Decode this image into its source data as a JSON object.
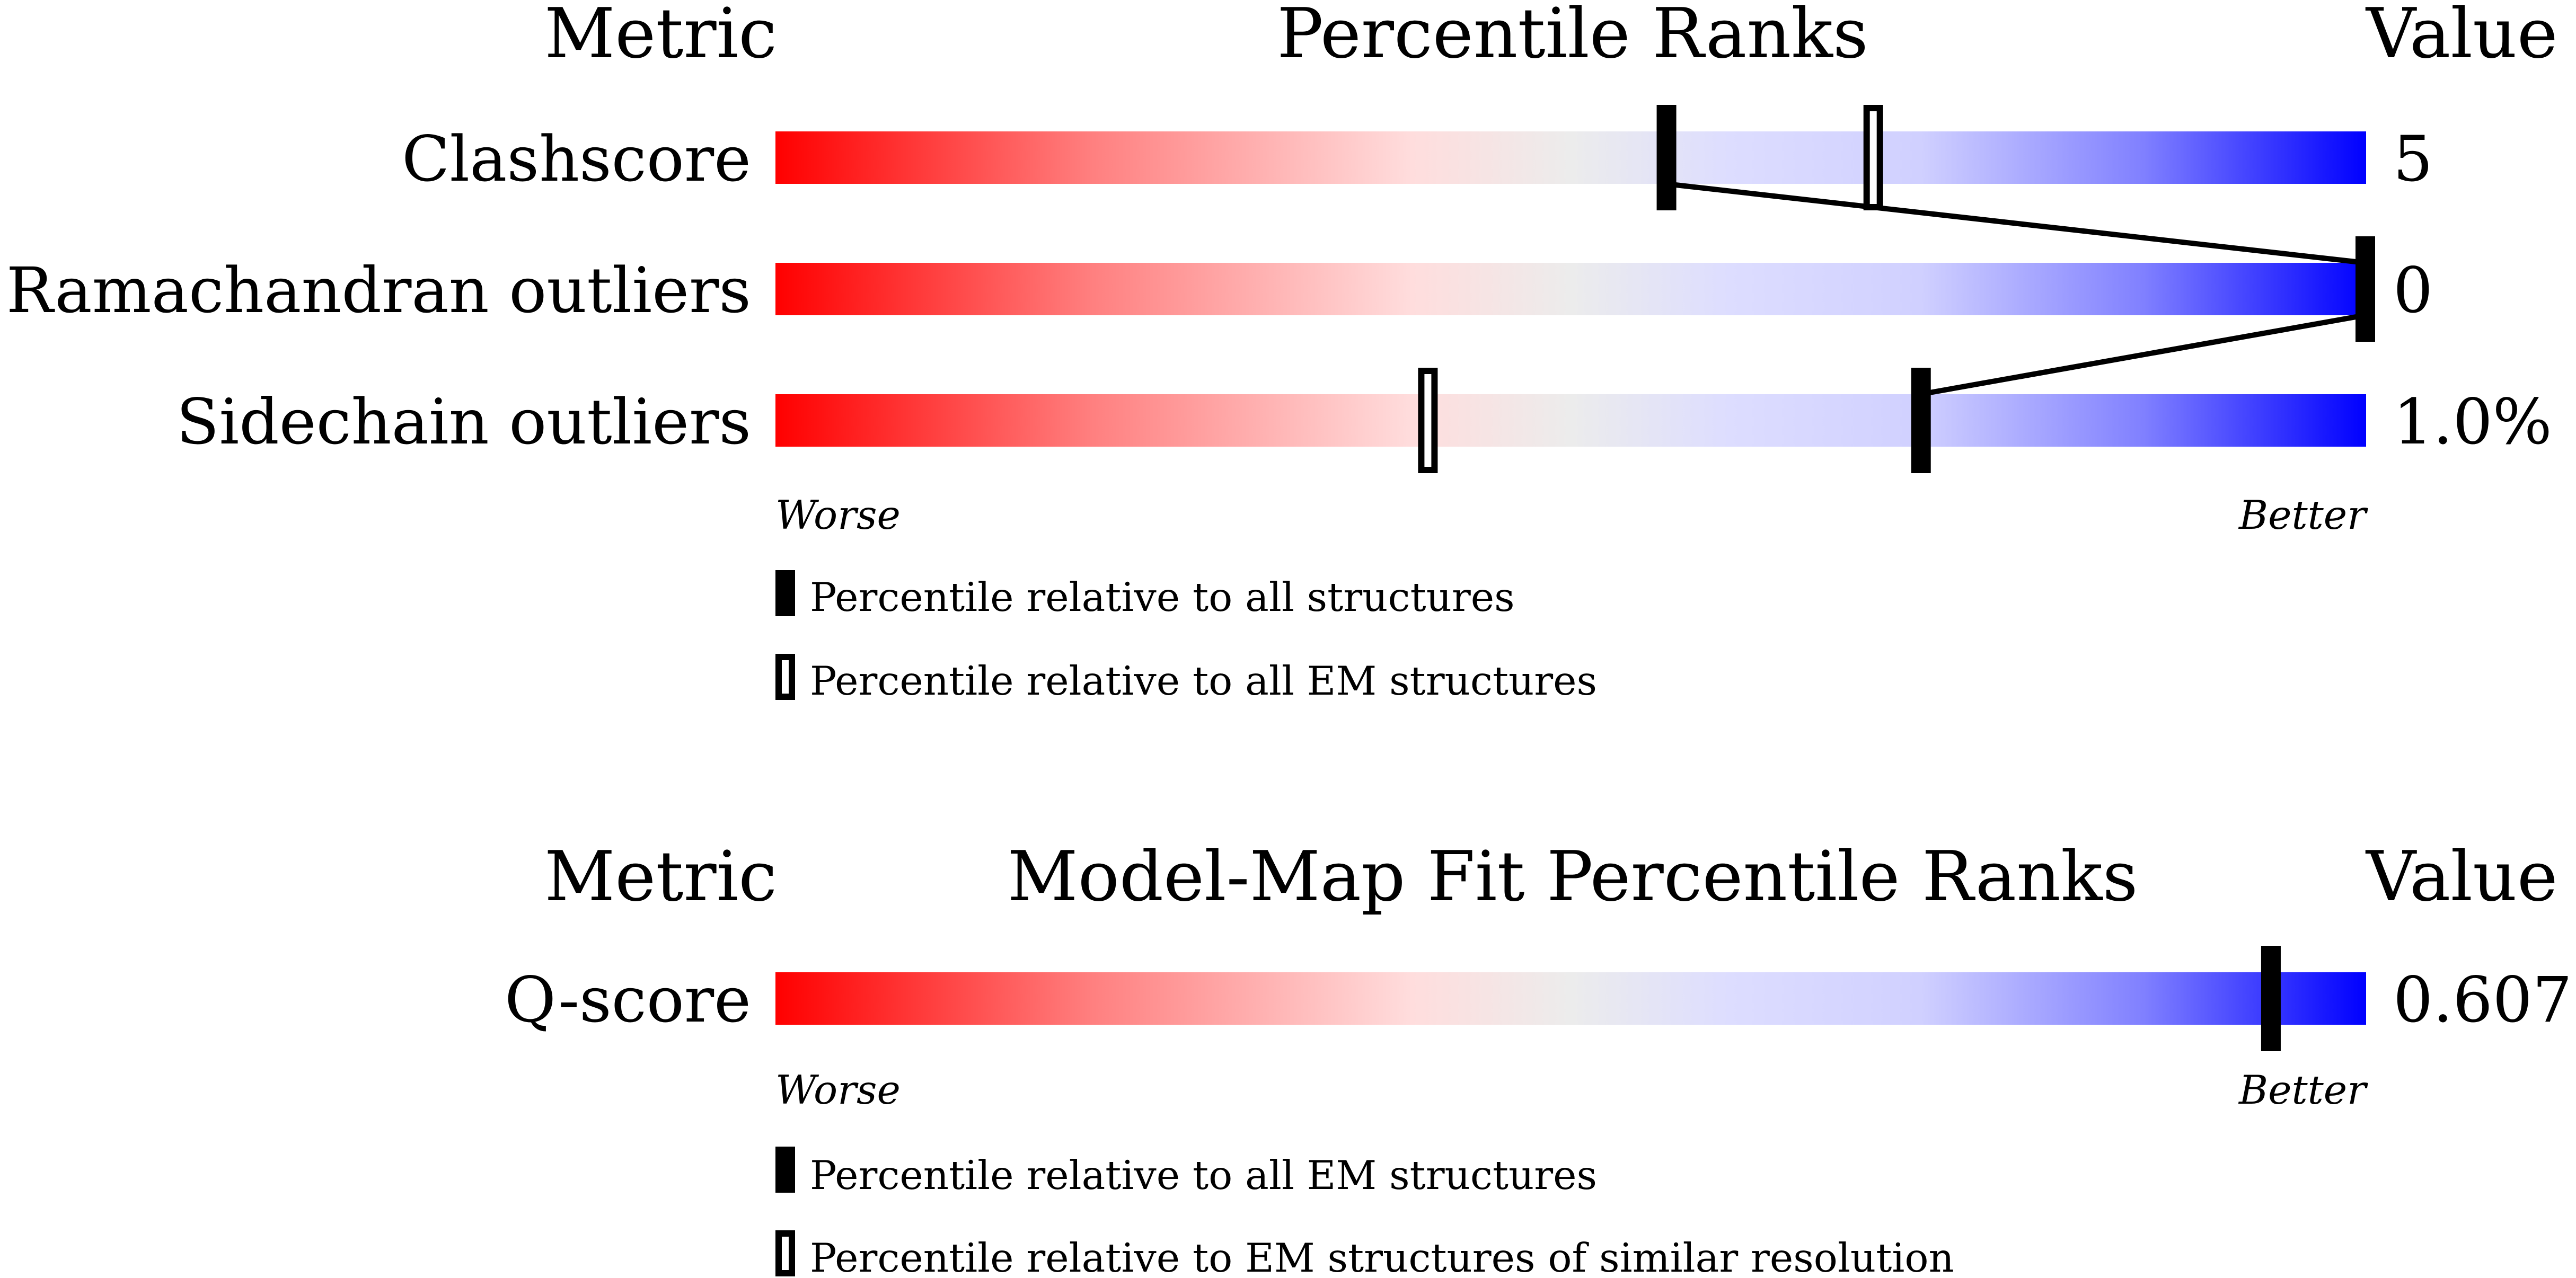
{
  "chart_data": [
    {
      "type": "percentile-slider",
      "header": {
        "metric": "Metric",
        "title": "Percentile Ranks",
        "value": "Value"
      },
      "xlim": [
        0,
        100
      ],
      "scale_left": "Worse",
      "scale_right": "Better",
      "gradient_colors": [
        "#ff0000",
        "#ff8080",
        "#ffdddd",
        "#ececec",
        "#ddddff",
        "#8080ff",
        "#0000ff"
      ],
      "metrics": [
        {
          "label": "Clashscore",
          "value": "5",
          "percentile_all": 56,
          "percentile_secondary": 69
        },
        {
          "label": "Ramachandran outliers",
          "value": "0",
          "percentile_all": 100,
          "percentile_secondary": null
        },
        {
          "label": "Sidechain outliers",
          "value": "1.0%",
          "percentile_all": 72,
          "percentile_secondary": 41
        }
      ],
      "legend": [
        {
          "marker": "filled",
          "text": "Percentile relative to all structures"
        },
        {
          "marker": "hollow",
          "text": "Percentile relative to all EM structures"
        }
      ],
      "connect_all_markers": true
    },
    {
      "type": "percentile-slider",
      "header": {
        "metric": "Metric",
        "title": "Model-Map Fit Percentile Ranks",
        "value": "Value"
      },
      "xlim": [
        0,
        100
      ],
      "scale_left": "Worse",
      "scale_right": "Better",
      "metrics": [
        {
          "label": "Q-score",
          "value": "0.607",
          "percentile_all": 94,
          "percentile_secondary": null
        }
      ],
      "legend": [
        {
          "marker": "filled",
          "text": "Percentile relative to all EM structures"
        },
        {
          "marker": "hollow",
          "text": "Percentile relative to EM structures of similar resolution"
        }
      ],
      "connect_all_markers": false
    }
  ]
}
